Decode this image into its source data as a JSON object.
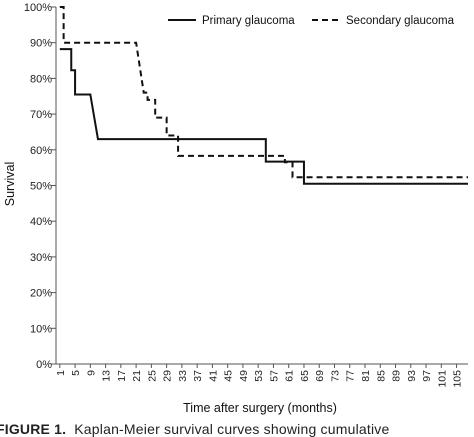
{
  "chart_data": {
    "type": "line",
    "step": true,
    "xlabel": "Time after surgery (months)",
    "ylabel": "Survival",
    "y_ticks": [
      "0%",
      "10%",
      "20%",
      "30%",
      "40%",
      "50%",
      "60%",
      "70%",
      "80%",
      "90%",
      "100%"
    ],
    "ylim": [
      0,
      100
    ],
    "x_ticks": [
      "1",
      "5",
      "9",
      "13",
      "17",
      "21",
      "25",
      "29",
      "33",
      "37",
      "41",
      "45",
      "49",
      "53",
      "57",
      "61",
      "65",
      "69",
      "73",
      "77",
      "81",
      "85",
      "89",
      "93",
      "97",
      "101",
      "105"
    ],
    "xlim": [
      0,
      108
    ],
    "grid": false,
    "legend_position": "top-right",
    "series": [
      {
        "name": "Primary glaucoma",
        "style": "solid",
        "color": "#111111",
        "points": [
          [
            1,
            88.2
          ],
          [
            4,
            88.2
          ],
          [
            4,
            82.3
          ],
          [
            5,
            82.3
          ],
          [
            5,
            75.5
          ],
          [
            9,
            75.5
          ],
          [
            11,
            63.0
          ],
          [
            55,
            63.0
          ],
          [
            55,
            56.7
          ],
          [
            61,
            56.7
          ],
          [
            61,
            56.7
          ],
          [
            65,
            56.7
          ],
          [
            65,
            50.5
          ],
          [
            108,
            50.5
          ]
        ]
      },
      {
        "name": "Secondary glaucoma",
        "style": "dashed",
        "color": "#111111",
        "points": [
          [
            1,
            100
          ],
          [
            2,
            100
          ],
          [
            2,
            90.0
          ],
          [
            21,
            90.0
          ],
          [
            23,
            76.0
          ],
          [
            24,
            76.0
          ],
          [
            24,
            74.0
          ],
          [
            26,
            74.0
          ],
          [
            26,
            69.0
          ],
          [
            29,
            69.0
          ],
          [
            29,
            64.0
          ],
          [
            32,
            64.0
          ],
          [
            32,
            58.3
          ],
          [
            60,
            58.3
          ],
          [
            60,
            56.5
          ],
          [
            62,
            56.5
          ],
          [
            62,
            52.3
          ],
          [
            108,
            52.3
          ]
        ]
      }
    ]
  },
  "caption": {
    "label": "FIGURE 1.",
    "text": "Kaplan-Meier survival curves showing cumulative"
  }
}
